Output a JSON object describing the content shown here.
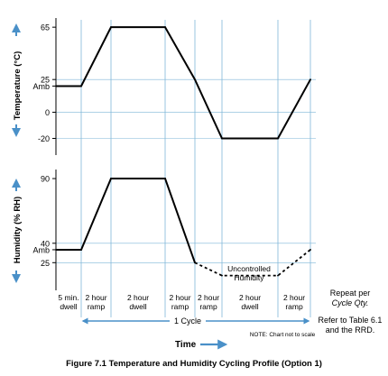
{
  "caption": "Figure 7.1  Temperature and Humidity Cycling Profile (Option 1)",
  "colors": {
    "profile": "#000000",
    "guide": "#7fb6d8",
    "arrow": "#4a90c8",
    "axis": "#000000"
  },
  "chart_data": [
    {
      "type": "line",
      "ylabel": "Temperature (°C)",
      "ytick_labels": [
        "65",
        "25",
        "Amb",
        "0",
        "-20"
      ],
      "ytick_values": [
        65,
        25,
        20,
        0,
        -20
      ],
      "ylim": [
        -30,
        72
      ],
      "segments": [
        "5 min. dwell",
        "2 hour ramp",
        "2 hour dwell",
        "2 hour ramp",
        "2 hour ramp",
        "2 hour dwell",
        "2 hour ramp"
      ],
      "series": [
        {
          "values": [
            20,
            20,
            65,
            65,
            25,
            -20,
            -20,
            25
          ],
          "style": "solid"
        }
      ]
    },
    {
      "type": "line",
      "ylabel": "Humidity (% RH)",
      "ytick_labels": [
        "90",
        "40",
        "Amb",
        "25"
      ],
      "ytick_values": [
        90,
        40,
        35,
        25
      ],
      "ylim": [
        5,
        97
      ],
      "series": [
        {
          "values": [
            35,
            35,
            90,
            90,
            25,
            null,
            null,
            null
          ],
          "style": "solid"
        },
        {
          "values": [
            null,
            null,
            null,
            null,
            25,
            15,
            15,
            35
          ],
          "style": "dotted"
        }
      ],
      "annotation": [
        "Uncontrolled",
        "Humidity"
      ]
    }
  ],
  "timeline": {
    "segment_labels": [
      [
        "5 min.",
        "dwell"
      ],
      [
        "2 hour",
        "ramp"
      ],
      [
        "2 hour",
        "dwell"
      ],
      [
        "2 hour",
        "ramp"
      ],
      [
        "2 hour",
        "ramp"
      ],
      [
        "2 hour",
        "dwell"
      ],
      [
        "2 hour",
        "ramp"
      ]
    ],
    "cycle_label": "1 Cycle",
    "xlabel": "Time",
    "note": "NOTE: Chart not to scale",
    "side_note_1": [
      "Repeat per",
      "Cycle Qty."
    ],
    "side_note_2": [
      "Refer to Table 6.1",
      "and the RRD."
    ]
  }
}
